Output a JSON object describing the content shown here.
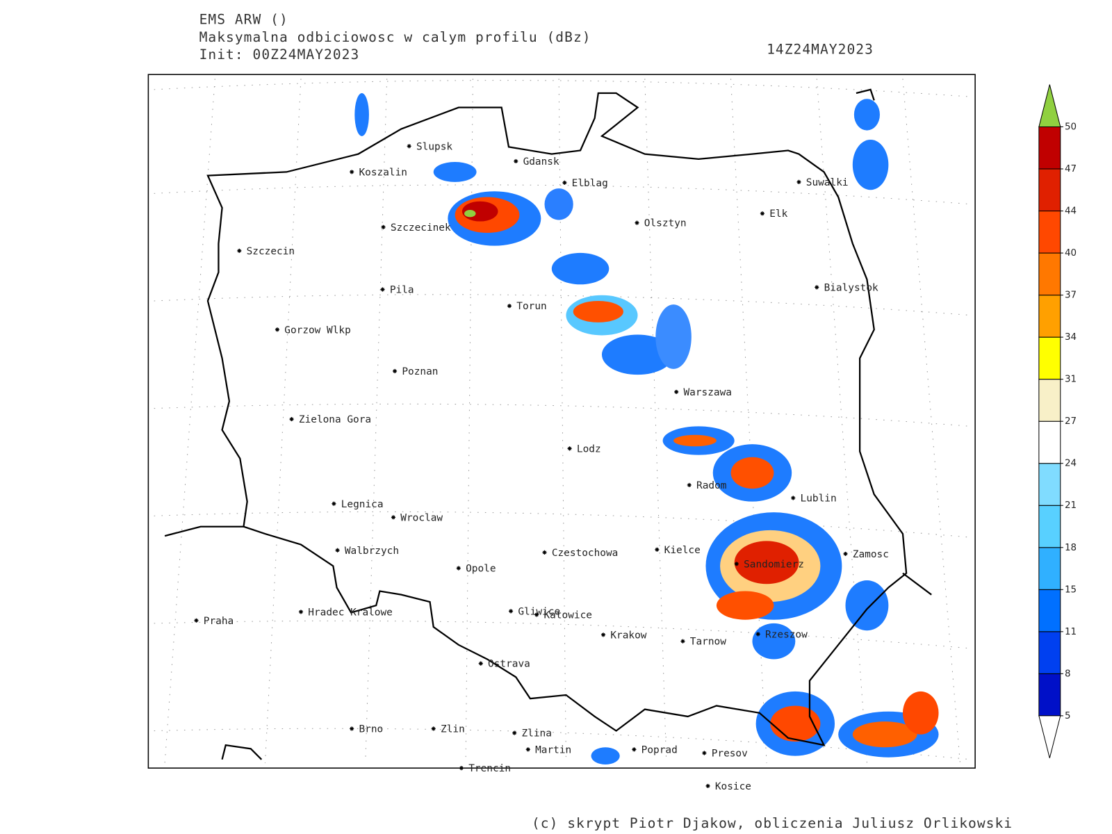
{
  "header": {
    "model": "EMS ARW ()",
    "field": "Maksymalna odbiciowosc w calym profilu (dBz)",
    "init": "Init: 00Z24MAY2023",
    "valid": "14Z24MAY2023"
  },
  "cities": [
    "Slupsk",
    "Koszalin",
    "Gdansk",
    "Elblag",
    "Suwalki",
    "Szczecinek",
    "Olsztyn",
    "Elk",
    "Szczecin",
    "Pila",
    "Torun",
    "Bialystok",
    "Gorzow Wlkp",
    "Poznan",
    "Warszawa",
    "Zielona Gora",
    "Lodz",
    "Radom",
    "Lublin",
    "Legnica",
    "Wroclaw",
    "Walbrzych",
    "Czestochowa",
    "Kielce",
    "Zamosc",
    "Opole",
    "Sandomierz",
    "Praha",
    "Hradec Kralowe",
    "Gliwice",
    "Katowice",
    "Krakow",
    "Tarnow",
    "Rzeszow",
    "Ostrava",
    "Brno",
    "Zlin",
    "Zlina",
    "Martin",
    "Poprad",
    "Presov",
    "Trencin",
    "Kosice"
  ],
  "colorbar": {
    "ticks": [
      5,
      8,
      11,
      15,
      18,
      21,
      24,
      27,
      31,
      34,
      37,
      40,
      44,
      47,
      50
    ],
    "colors": [
      "#0010c8",
      "#0040f0",
      "#0070ff",
      "#30b0ff",
      "#58d0ff",
      "#80dcff",
      "#ffffff",
      "#f8f0c8",
      "#ffff00",
      "#ffa000",
      "#ff7800",
      "#ff4800",
      "#e02000",
      "#c00000"
    ],
    "under_color": "#ffffff",
    "over_color": "#90d040"
  },
  "footer": "(c) skrypt Piotr Djakow, obliczenia Juliusz Orlikowski"
}
